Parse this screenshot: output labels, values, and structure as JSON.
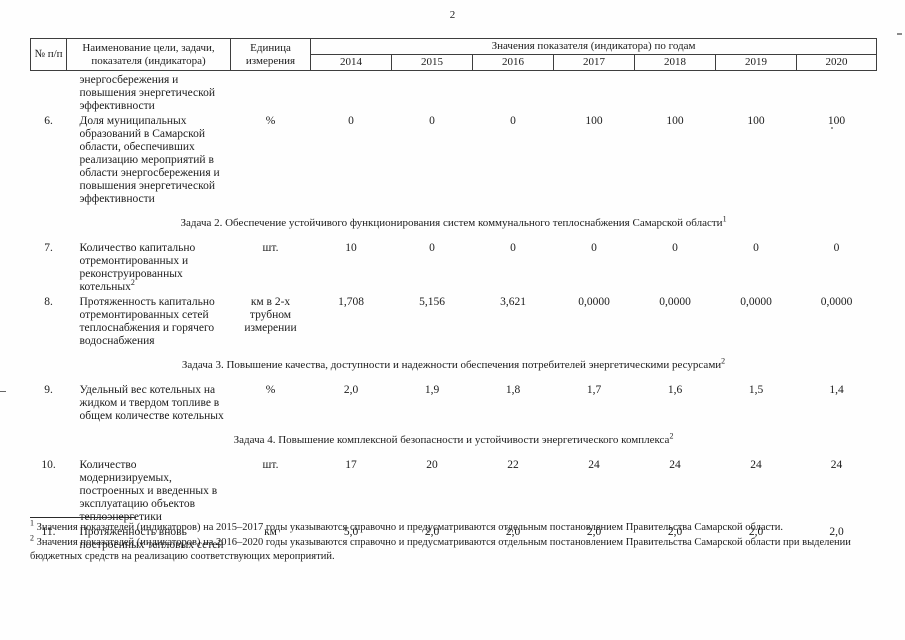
{
  "page": {
    "number": "2"
  },
  "table": {
    "headers": {
      "num": "№ п/п",
      "name": "Наименование цели, задачи, показателя (индикатора)",
      "unit": "Единица измерения",
      "years_group": "Значения показателя (индикатора) по годам",
      "years": [
        "2014",
        "2015",
        "2016",
        "2017",
        "2018",
        "2019",
        "2020"
      ]
    },
    "rows": [
      {
        "type": "continuation",
        "name": "энергосбережения и повышения энергетической эффективности"
      },
      {
        "type": "indicator",
        "num": "6.",
        "name": "Доля муниципальных образований в Самарской области, обеспечивших реализацию мероприятий в области энергосбережения и повышения энергетической эффективности",
        "unit": "%",
        "values": [
          "0",
          "0",
          "0",
          "100",
          "100",
          "100",
          "100"
        ]
      },
      {
        "type": "section",
        "text": "Задача 2. Обеспечение устойчивого функционирования систем коммунального теплоснабжения Самарской области",
        "sup": "1"
      },
      {
        "type": "indicator",
        "num": "7.",
        "name": "Количество капитально отремонтированных и реконструированных котельных",
        "name_sup": "2",
        "unit": "шт.",
        "values": [
          "10",
          "0",
          "0",
          "0",
          "0",
          "0",
          "0"
        ]
      },
      {
        "type": "indicator",
        "num": "8.",
        "name": "Протяженность капитально отремонтированных сетей теплоснабжения и горячего водоснабжения",
        "unit": "км в 2-х трубном измерении",
        "values": [
          "1,708",
          "5,156",
          "3,621",
          "0,0000",
          "0,0000",
          "0,0000",
          "0,0000"
        ]
      },
      {
        "type": "section",
        "text": "Задача 3. Повышение качества, доступности и надежности обеспечения потребителей энергетическими ресурсами",
        "sup": "2"
      },
      {
        "type": "indicator",
        "num": "9.",
        "name": "Удельный вес котельных на жидком и твердом топливе в общем количестве котельных",
        "unit": "%",
        "values": [
          "2,0",
          "1,9",
          "1,8",
          "1,7",
          "1,6",
          "1,5",
          "1,4"
        ]
      },
      {
        "type": "section",
        "text": "Задача 4. Повышение комплексной безопасности и устойчивости энергетического комплекса",
        "sup": "2"
      },
      {
        "type": "indicator",
        "num": "10.",
        "name": "Количество модернизируемых, построенных и введенных в эксплуатацию объектов теплоэнергетики",
        "unit": "шт.",
        "values": [
          "17",
          "20",
          "22",
          "24",
          "24",
          "24",
          "24"
        ]
      },
      {
        "type": "indicator",
        "num": "11.",
        "name": "Протяженность вновь построенных тепловых сетей",
        "unit": "км",
        "values": [
          "5,0",
          "2,0",
          "2,0",
          "2,0",
          "2,0",
          "2,0",
          "2,0"
        ]
      }
    ]
  },
  "footnotes": [
    {
      "sup": "1",
      "text": " Значения показателей (индикаторов) на 2015–2017 годы указываются справочно и предусматриваются отдельным постановлением Правительства Самарской области."
    },
    {
      "sup": "2",
      "text": " Значения показателей (индикаторов) на 2016–2020 годы указываются справочно и предусматриваются отдельным постановлением Правительства Самарской области при выделении бюджетных средств на реализацию соответствующих мероприятий."
    }
  ]
}
